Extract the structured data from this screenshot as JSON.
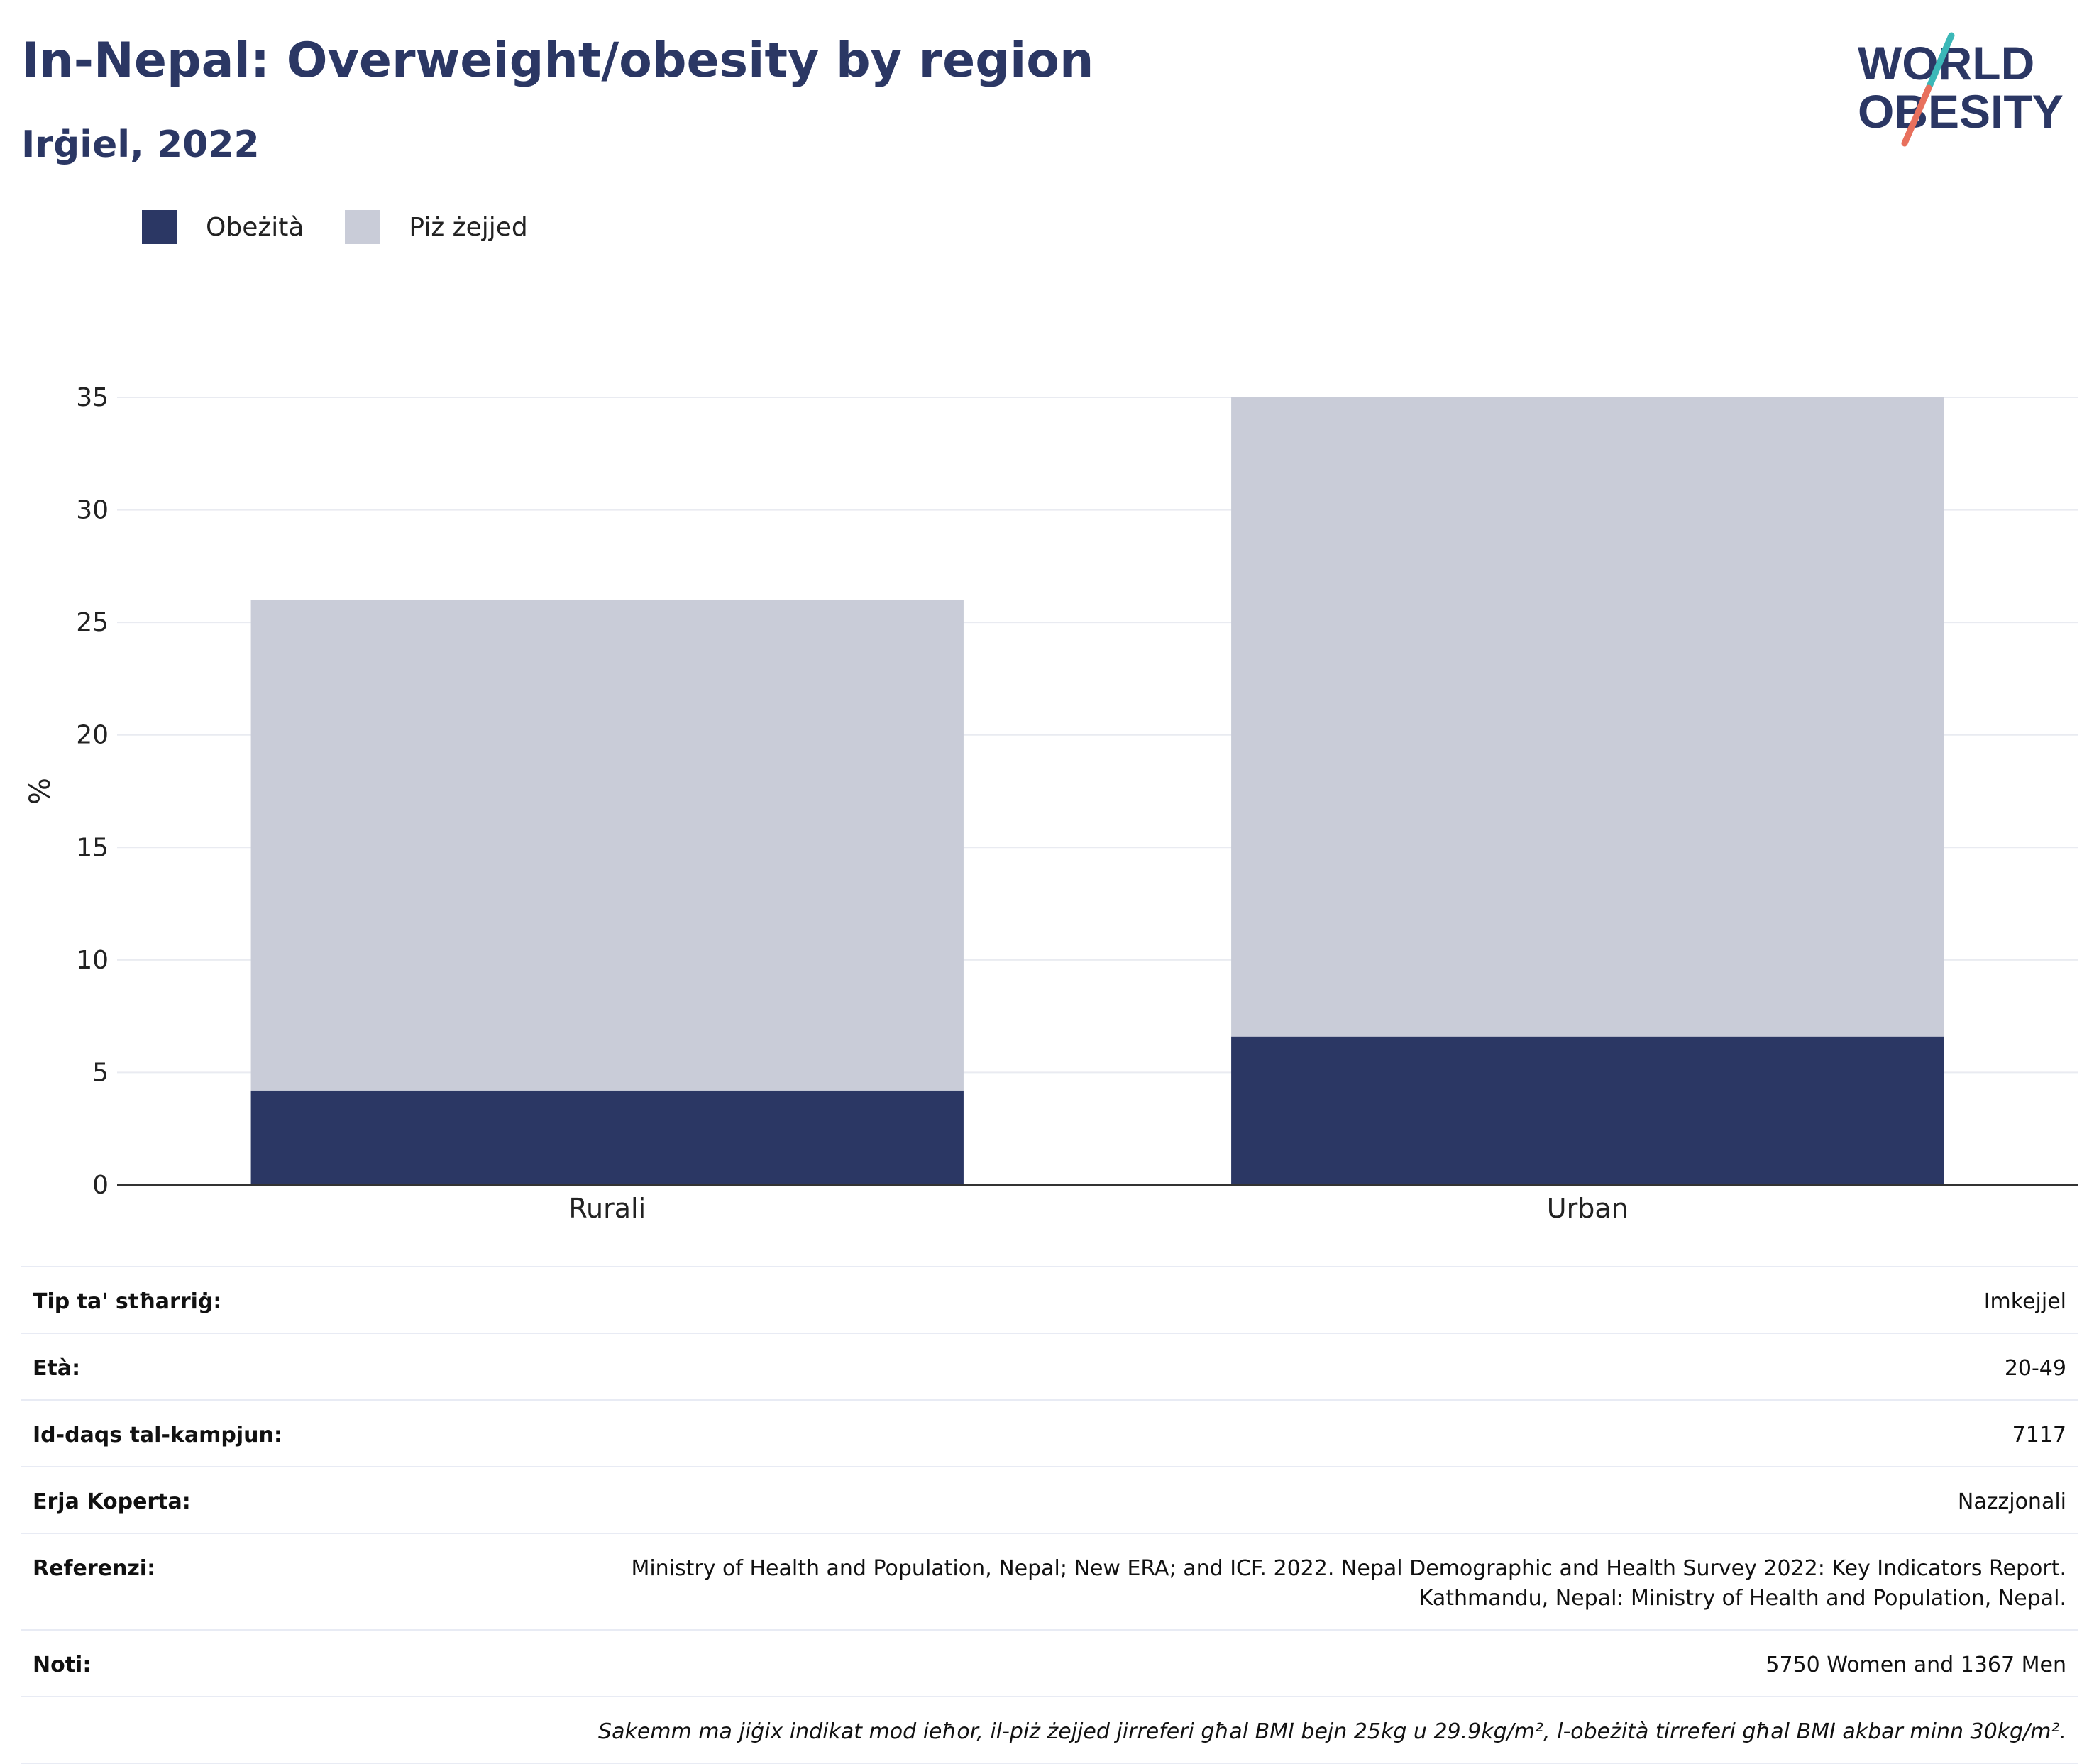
{
  "header": {
    "title": "In-Nepal: Overweight/obesity by region",
    "subtitle": "Irġiel, 2022"
  },
  "logo": {
    "line1": "WORLD",
    "line2": "OBESITY",
    "icon": "world-obesity-logo"
  },
  "legend": [
    {
      "label": "Obeżità",
      "color": "#2b3764"
    },
    {
      "label": "Piż żejjed",
      "color": "#c9ccd8"
    }
  ],
  "chart_data": {
    "type": "bar",
    "stacked": true,
    "categories": [
      "Rurali",
      "Urban"
    ],
    "series": [
      {
        "name": "Obeżità",
        "values": [
          4.2,
          6.6
        ],
        "color": "#2b3764"
      },
      {
        "name": "Piż żejjed",
        "values": [
          21.8,
          28.4
        ],
        "color": "#c9ccd8"
      }
    ],
    "ylabel": "%",
    "ylim": [
      0,
      35
    ],
    "yticks": [
      0,
      5,
      10,
      15,
      20,
      25,
      30,
      35
    ],
    "grid": true,
    "legend_position": "top-left"
  },
  "meta": {
    "survey_type_label": "Tip ta' stħarriġ:",
    "survey_type_value": "Imkejjel",
    "age_label": "Età:",
    "age_value": "20-49",
    "sample_label": "Id-daqs tal-kampjun:",
    "sample_value": "7117",
    "area_label": "Erja Koperta:",
    "area_value": "Nazzjonali",
    "ref_label": "Referenzi:",
    "ref_line1": "Ministry of Health and Population, Nepal; New ERA; and ICF. 2022. Nepal Demographic and Health Survey 2022: Key Indicators Report.",
    "ref_line2": "Kathmandu, Nepal: Ministry of Health and Population, Nepal.",
    "notes_label": "Noti:",
    "notes_value": "5750 Women and 1367 Men",
    "footnote": "Sakemm ma jiġix indikat mod ieħor, il-piż żejjed jirreferi għal BMI bejn 25kg u 29.9kg/m², l-obeżità tirreferi għal BMI akbar minn 30kg/m²."
  }
}
